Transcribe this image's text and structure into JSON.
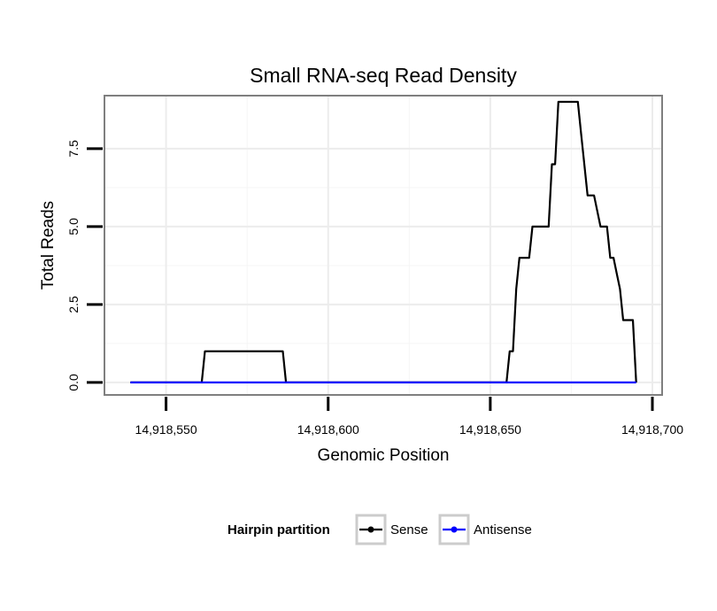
{
  "chart_data": {
    "type": "line",
    "title": "Small RNA-seq Read Density",
    "xlabel": "Genomic Position",
    "ylabel": "Total Reads",
    "xlim": [
      14918531,
      14918703
    ],
    "ylim": [
      -0.4,
      9.2
    ],
    "x_ticks": [
      14918550,
      14918600,
      14918650,
      14918700
    ],
    "x_tick_labels": [
      "14,918,550",
      "14,918,600",
      "14,918,650",
      "14,918,700"
    ],
    "y_ticks": [
      0,
      2.5,
      5,
      7.5
    ],
    "y_tick_labels": [
      "0.0",
      "2.5",
      "5.0",
      "7.5"
    ],
    "grid": true,
    "legend": {
      "title": "Hairpin partition",
      "position": "bottom",
      "entries": [
        "Sense",
        "Antisense"
      ]
    },
    "series": [
      {
        "name": "Sense",
        "color": "#000000",
        "x": [
          14918539,
          14918561,
          14918562,
          14918586,
          14918587,
          14918655,
          14918656,
          14918657,
          14918658,
          14918659,
          14918660,
          14918662,
          14918663,
          14918665,
          14918666,
          14918668,
          14918669,
          14918670,
          14918671,
          14918673,
          14918677,
          14918678,
          14918680,
          14918681,
          14918682,
          14918684,
          14918685,
          14918686,
          14918687,
          14918688,
          14918689,
          14918690,
          14918691,
          14918693,
          14918694,
          14918695
        ],
        "values": [
          0,
          0,
          1,
          1,
          0,
          0,
          1,
          1,
          3,
          4,
          4,
          4,
          5,
          5,
          5,
          5,
          7,
          7,
          9,
          9,
          9,
          8,
          6,
          6,
          6,
          5,
          5,
          5,
          4,
          4,
          3.5,
          3,
          2,
          2,
          2,
          0
        ]
      },
      {
        "name": "Antisense",
        "color": "#0000ff",
        "x": [
          14918539,
          14918695
        ],
        "values": [
          0,
          0
        ]
      }
    ]
  }
}
